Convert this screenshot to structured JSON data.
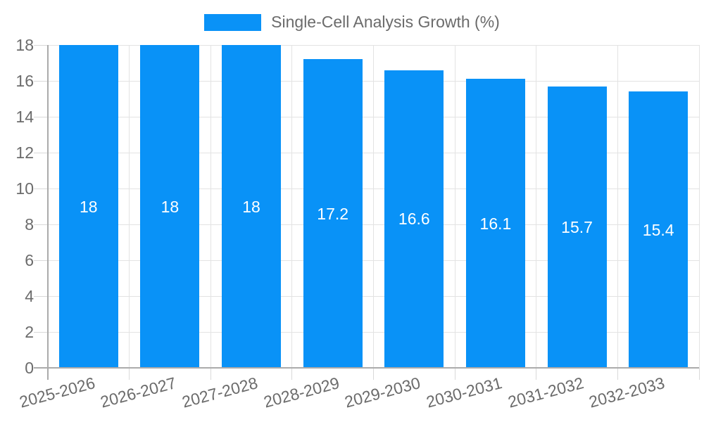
{
  "legend": {
    "label": "Single-Cell Analysis Growth (%)"
  },
  "colors": {
    "bar": "#0992f7",
    "text": "#6b6b6b",
    "grid": "#e3e3e3",
    "tick": "#d9d9d9",
    "axis": "#ababab",
    "value_label": "#ffffff",
    "background": "#ffffff"
  },
  "chart_data": {
    "type": "bar",
    "title": "",
    "xlabel": "",
    "ylabel": "",
    "legend_entries": [
      "Single-Cell Analysis Growth (%)"
    ],
    "legend_position": "top-center",
    "grid": true,
    "categories": [
      "2025-2026",
      "2026-2027",
      "2027-2028",
      "2028-2029",
      "2029-2030",
      "2030-2031",
      "2031-2032",
      "2032-2033"
    ],
    "values": [
      18,
      18,
      18,
      17.2,
      16.6,
      16.1,
      15.7,
      15.4
    ],
    "value_labels": [
      "18",
      "18",
      "18",
      "17.2",
      "16.6",
      "16.1",
      "15.7",
      "15.4"
    ],
    "ylim": [
      0,
      18
    ],
    "yticks": [
      0,
      2,
      4,
      6,
      8,
      10,
      12,
      14,
      16,
      18
    ],
    "bar_color": "#0992f7"
  }
}
